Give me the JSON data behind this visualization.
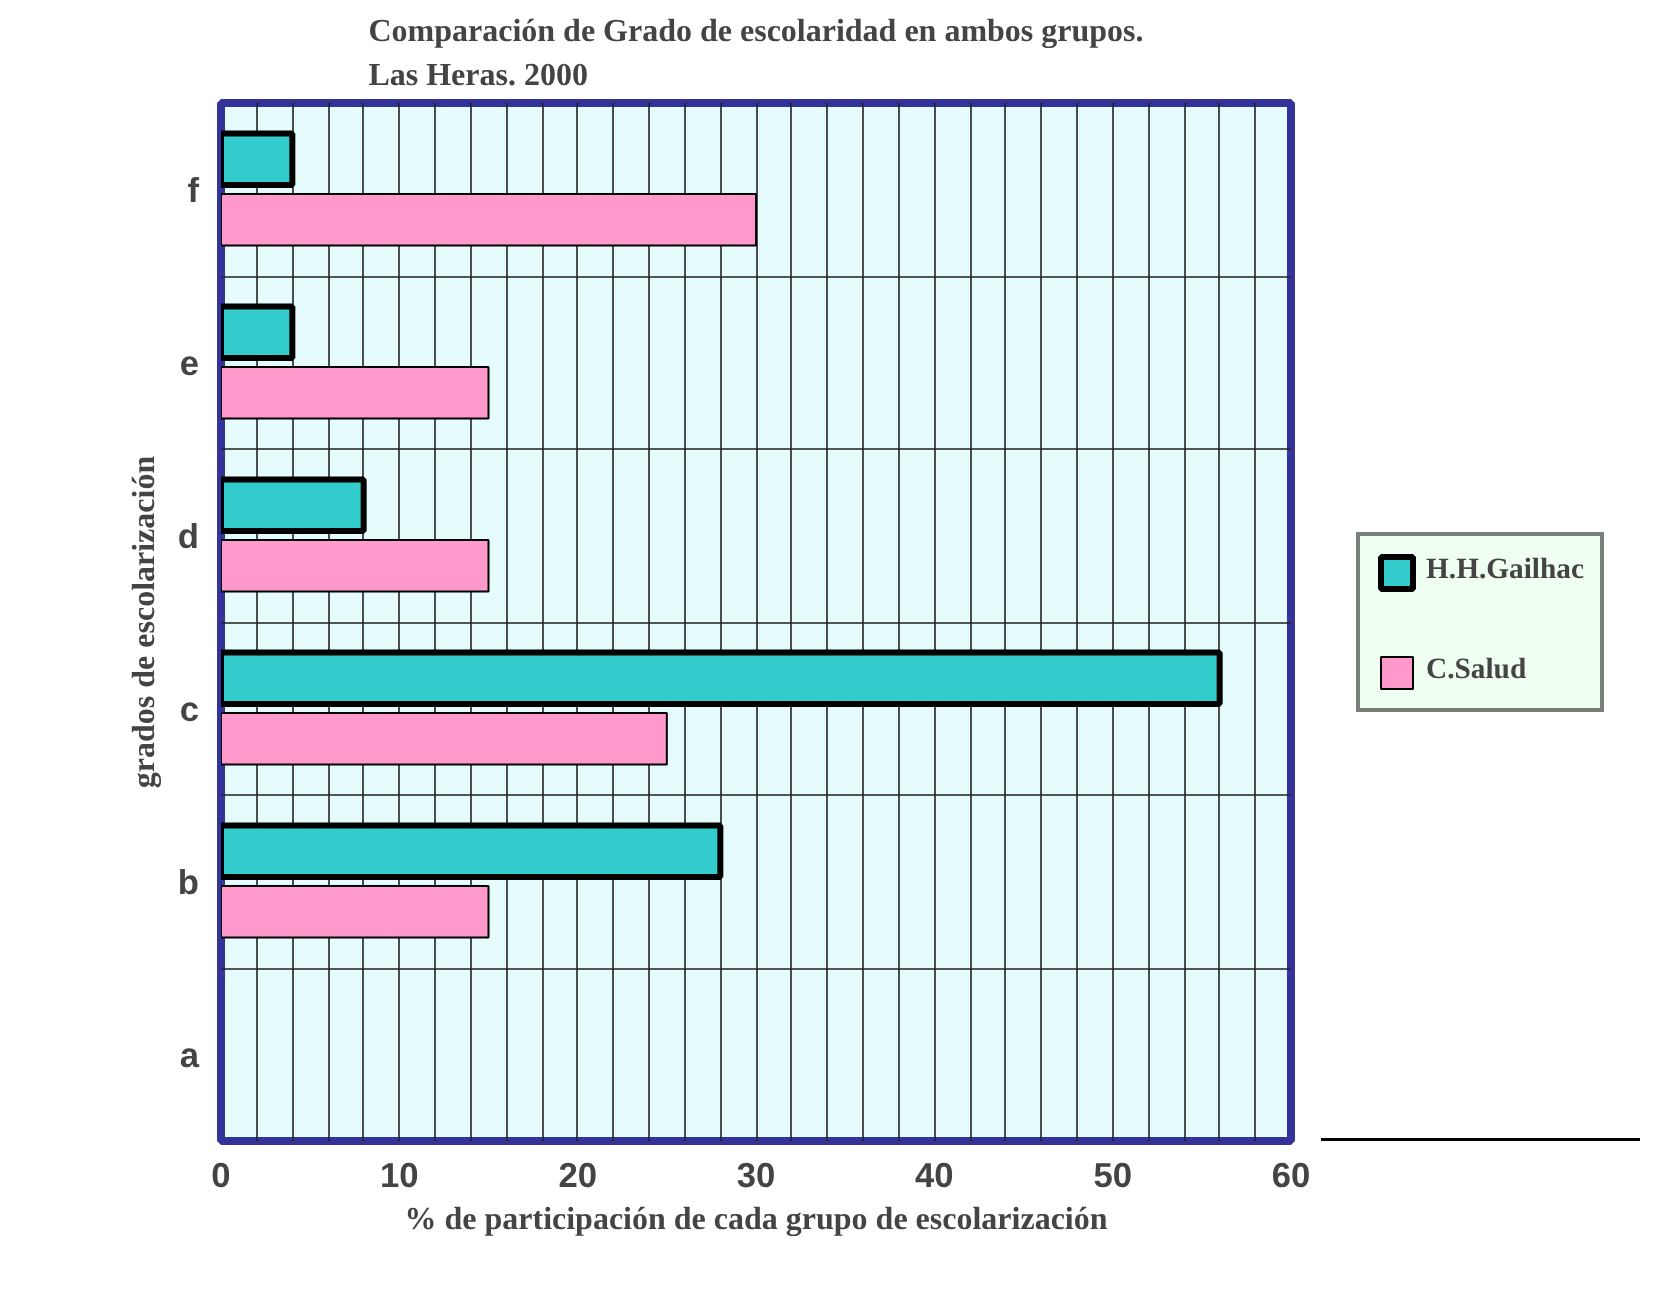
{
  "chart_data": {
    "type": "bar",
    "orientation": "horizontal",
    "title": "Comparación de Grado de escolaridad en ambos grupos.\nLas Heras. 2000",
    "xlabel": "% de participación de cada grupo de escolarización",
    "ylabel": "grados de escolarización",
    "categories": [
      "f",
      "e",
      "d",
      "c",
      "b",
      "a"
    ],
    "series": [
      {
        "name": "H.H.Gailhac",
        "color": "#33cccc",
        "values": [
          4,
          4,
          8,
          56,
          28,
          0
        ]
      },
      {
        "name": "C.Salud",
        "color": "#ff99cc",
        "values": [
          30,
          15,
          15,
          25,
          15,
          0
        ]
      }
    ],
    "xlim": [
      0,
      60
    ],
    "xticks": [
      0,
      {
        "value": 2,
        "label": null
      },
      {
        "value": 4,
        "label": null
      },
      {
        "value": 6,
        "label": null
      },
      {
        "value": 8,
        "label": null
      },
      10,
      {
        "value": 12,
        "label": null
      },
      {
        "value": 14,
        "label": null
      },
      {
        "value": 16,
        "label": null
      },
      {
        "value": 18,
        "label": null
      },
      20,
      {
        "value": 22,
        "label": null
      },
      {
        "value": 24,
        "label": null
      },
      {
        "value": 26,
        "label": null
      },
      {
        "value": 28,
        "label": null
      },
      30,
      {
        "value": 32,
        "label": null
      },
      {
        "value": 34,
        "label": null
      },
      {
        "value": 36,
        "label": null
      },
      {
        "value": 38,
        "label": null
      },
      40,
      {
        "value": 42,
        "label": null
      },
      {
        "value": 44,
        "label": null
      },
      {
        "value": 46,
        "label": null
      },
      {
        "value": 48,
        "label": null
      },
      50,
      {
        "value": 52,
        "label": null
      },
      {
        "value": 54,
        "label": null
      },
      {
        "value": 56,
        "label": null
      },
      {
        "value": 58,
        "label": null
      },
      60
    ],
    "grid": true,
    "legend": "right"
  }
}
